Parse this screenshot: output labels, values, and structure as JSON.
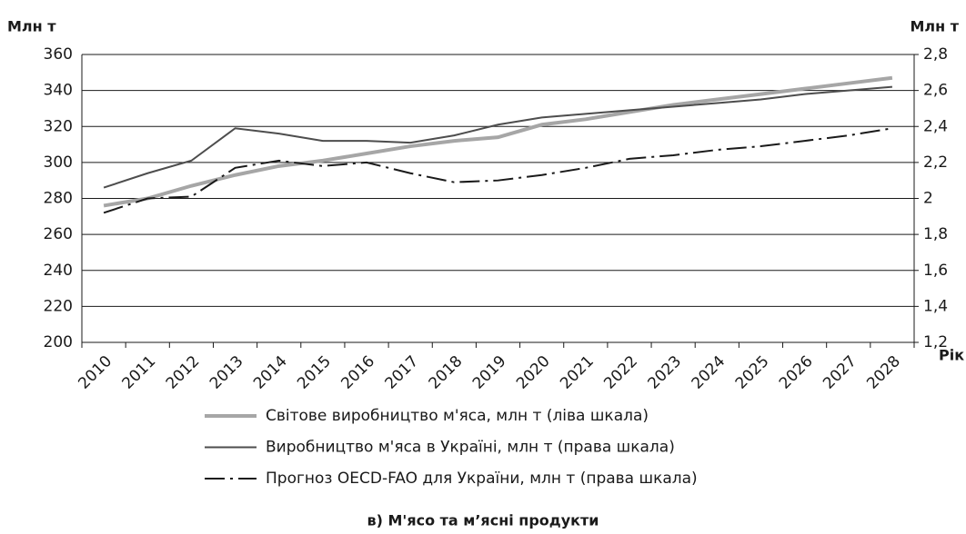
{
  "chart_data": {
    "type": "line",
    "y_label": "Млн т",
    "y2_label": "Млн т",
    "x_label": "Рік",
    "caption": "в) М'ясо та м’ясні продукти",
    "categories": [
      "2010",
      "2011",
      "2012",
      "2013",
      "2014",
      "2015",
      "2016",
      "2017",
      "2018",
      "2019",
      "2020",
      "2021",
      "2022",
      "2023",
      "2024",
      "2025",
      "2026",
      "2027",
      "2028"
    ],
    "ylim": [
      200,
      360
    ],
    "yticks": [
      200,
      220,
      240,
      260,
      280,
      300,
      320,
      340,
      360
    ],
    "y2lim": [
      1.2,
      2.8
    ],
    "y2ticks": [
      {
        "value": 1.2,
        "label": "1,2"
      },
      {
        "value": 1.4,
        "label": "1,4"
      },
      {
        "value": 1.6,
        "label": "1,6"
      },
      {
        "value": 1.8,
        "label": "1,8"
      },
      2,
      {
        "value": 2.2,
        "label": "2,2"
      },
      {
        "value": 2.4,
        "label": "2,4"
      },
      {
        "value": 2.6,
        "label": "2,6"
      },
      {
        "value": 2.8,
        "label": "2,8"
      }
    ],
    "grid": true,
    "series": [
      {
        "name": "Світове виробництво м'яса, млн т (ліва шкала)",
        "color": "#a6a6a6",
        "line_width": 4,
        "style": "solid",
        "values": [
          276,
          280,
          287,
          293,
          298,
          301,
          305,
          309,
          312,
          314,
          321,
          324,
          328,
          332,
          335,
          338,
          341,
          344,
          347
        ]
      },
      {
        "name": "Виробництво м'яса в Україні, млн т (права шкала)",
        "color": "#4d4d4d",
        "line_width": 2,
        "style": "solid",
        "axis": "y2",
        "values": [
          2.06,
          2.14,
          2.21,
          2.39,
          2.36,
          2.32,
          2.32,
          2.31,
          2.35,
          2.41,
          2.45,
          2.47,
          2.49,
          2.51,
          2.53,
          2.55,
          2.58,
          2.6,
          2.62
        ]
      },
      {
        "name": "Прогноз OECD-FAO для України, млн т (права шкала)",
        "color": "#1a1a1a",
        "line_width": 2,
        "style": "dashdot",
        "axis": "y2",
        "values": [
          1.92,
          2.0,
          2.01,
          2.17,
          2.21,
          2.18,
          2.2,
          2.14,
          2.09,
          2.1,
          2.13,
          2.17,
          2.22,
          2.24,
          2.27,
          2.29,
          2.32,
          2.35,
          2.39
        ]
      }
    ]
  }
}
